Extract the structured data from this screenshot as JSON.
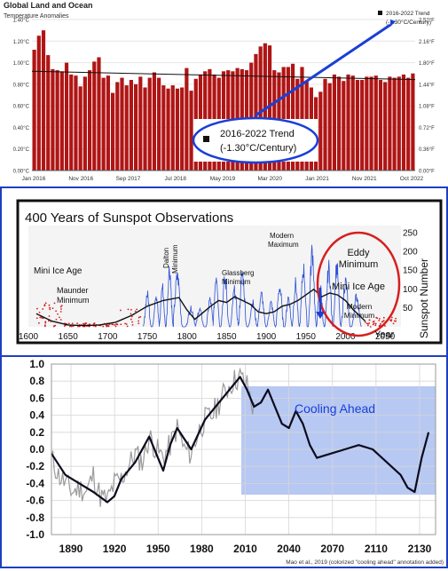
{
  "chart_data": [
    {
      "type": "bar",
      "title": "Global Land and Ocean",
      "subtitle": "Temperature Anomalies",
      "y_ticks_left": [
        "0.00°C",
        "0.20°C",
        "0.40°C",
        "0.60°C",
        "0.80°C",
        "1.00°C",
        "1.20°C",
        "1.40°C"
      ],
      "y_ticks_right": [
        "0.00°F",
        "0.36°F",
        "0.72°F",
        "1.08°F",
        "1.44°F",
        "1.80°F",
        "2.16°F",
        "2.52°F"
      ],
      "x_ticks": [
        "Jan 2016",
        "Nov 2016",
        "Sep 2017",
        "Jul 2018",
        "May 2019",
        "Mar 2020",
        "Jan 2021",
        "Nov 2021",
        "Oct 2022"
      ],
      "ylim": [
        0,
        1.4
      ],
      "legend": "2016-2022 Trend",
      "legend_sub": "(-1.30°C/Century)",
      "callout": "2016-2022 Trend",
      "callout_sub": "(-1.30°C/Century)",
      "bar_color": "#b01515",
      "values": [
        1.12,
        1.25,
        1.3,
        1.07,
        0.94,
        0.93,
        0.92,
        1.0,
        0.89,
        0.88,
        0.78,
        0.87,
        0.93,
        1.01,
        1.05,
        0.86,
        0.88,
        0.72,
        0.82,
        0.86,
        0.79,
        0.84,
        0.8,
        0.87,
        0.77,
        0.86,
        0.91,
        0.86,
        0.79,
        0.76,
        0.79,
        0.76,
        0.77,
        0.95,
        0.74,
        0.85,
        0.89,
        0.92,
        0.94,
        0.89,
        0.86,
        0.92,
        0.93,
        0.92,
        0.95,
        0.94,
        0.93,
        1.0,
        1.08,
        1.15,
        1.18,
        1.16,
        0.93,
        0.91,
        0.96,
        0.96,
        0.99,
        0.85,
        0.96,
        0.83,
        0.77,
        0.68,
        0.73,
        0.85,
        0.81,
        0.89,
        0.87,
        0.83,
        0.89,
        0.88,
        0.84,
        0.84,
        0.87,
        0.87,
        0.88,
        0.84,
        0.82,
        0.87,
        0.86,
        0.87,
        0.89,
        0.86,
        0.9
      ],
      "trend": [
        0.92,
        0.843
      ]
    },
    {
      "type": "area",
      "title": "400 Years of Sunspot Observations",
      "y2label": "Sunspot Number",
      "x_ticks": [
        1600,
        1650,
        1700,
        1750,
        1800,
        1850,
        1900,
        1950,
        2000,
        2050
      ],
      "y_ticks": [
        50,
        100,
        150,
        200,
        250
      ],
      "xlabel": "Year",
      "ylim": [
        0,
        270
      ],
      "annotations": {
        "mini_ice_age": "Mini Ice Age",
        "maunder_1": "Maunder",
        "maunder_2": "Minimum",
        "dalton_1": "Dalton",
        "dalton_2": "Minimum",
        "glassberg_1": "Glassberg",
        "glassberg_2": "Minimum",
        "modern_max_1": "Modern",
        "modern_max_2": "Maximum",
        "eddy_1": "Eddy",
        "eddy_2": "Minimum",
        "mini_ice_age_2": "Mini Ice Age",
        "modern_min_1": "Modern",
        "modern_min_2": "Minimum"
      },
      "smooth_x": [
        1610,
        1630,
        1650,
        1670,
        1690,
        1710,
        1730,
        1750,
        1770,
        1790,
        1800,
        1810,
        1830,
        1840,
        1850,
        1860,
        1870,
        1880,
        1890,
        1900,
        1910,
        1920,
        1930,
        1940,
        1950,
        1960,
        1970,
        1980,
        1990,
        2000,
        2010,
        2020,
        2025
      ],
      "smooth_y": [
        35,
        15,
        5,
        3,
        5,
        12,
        30,
        55,
        70,
        78,
        45,
        20,
        55,
        70,
        65,
        80,
        70,
        60,
        40,
        35,
        40,
        55,
        60,
        70,
        85,
        100,
        80,
        90,
        85,
        70,
        45,
        25,
        15
      ],
      "cycle_peaks": [
        [
          1750,
          85
        ],
        [
          1761,
          86
        ],
        [
          1769,
          106
        ],
        [
          1778,
          154
        ],
        [
          1788,
          132
        ],
        [
          1805,
          48
        ],
        [
          1816,
          46
        ],
        [
          1829,
          71
        ],
        [
          1837,
          138
        ],
        [
          1848,
          124
        ],
        [
          1860,
          95
        ],
        [
          1870,
          139
        ],
        [
          1883,
          64
        ],
        [
          1894,
          85
        ],
        [
          1906,
          62
        ],
        [
          1917,
          104
        ],
        [
          1928,
          78
        ],
        [
          1937,
          114
        ],
        [
          1947,
          152
        ],
        [
          1958,
          200
        ],
        [
          1968,
          106
        ],
        [
          1979,
          155
        ],
        [
          1989,
          158
        ],
        [
          2000,
          120
        ],
        [
          2014,
          80
        ]
      ]
    },
    {
      "type": "line",
      "x_ticks": [
        1890,
        1920,
        1950,
        1980,
        2010,
        2040,
        2070,
        2110,
        2130
      ],
      "y_ticks": [
        "1.0",
        "0.8",
        "0.6",
        "0.4",
        "0.2",
        "0.0",
        "-0.2",
        "-0.4",
        "-0.6",
        "-0.8",
        "-1.0"
      ],
      "ylim": [
        -1.0,
        1.0
      ],
      "annotation": "Cooling Ahead",
      "footnote": "Mao et al., 2019 (colorized \"cooling ahead\" annotation added)",
      "observed_x": [
        1870,
        1875,
        1880,
        1885,
        1890,
        1895,
        1900,
        1905,
        1910,
        1915,
        1920,
        1925,
        1930,
        1935,
        1940,
        1945,
        1950,
        1955,
        1960,
        1965,
        1970,
        1975,
        1980,
        1985,
        1990,
        1995,
        2000,
        2005,
        2010,
        2015
      ],
      "observed_y": [
        -0.1,
        -0.3,
        -0.4,
        -0.5,
        -0.45,
        -0.5,
        -0.3,
        -0.55,
        -0.6,
        -0.4,
        -0.35,
        -0.2,
        -0.05,
        -0.15,
        0.15,
        0.0,
        -0.1,
        0.05,
        0.25,
        0.0,
        -0.05,
        0.2,
        0.35,
        0.4,
        0.55,
        0.7,
        0.8,
        0.85,
        0.75,
        0.45
      ],
      "model_x": [
        1870,
        1880,
        1890,
        1900,
        1910,
        1915,
        1920,
        1930,
        1940,
        1945,
        1950,
        1955,
        1960,
        1970,
        1980,
        1990,
        2000,
        2005,
        2010,
        2015,
        2020,
        2025,
        2030,
        2035,
        2040,
        2045,
        2050,
        2055,
        2060,
        2070,
        2080,
        2090,
        2100,
        2110,
        2120,
        2125,
        2130,
        2135,
        2140
      ],
      "model_y": [
        -0.05,
        -0.3,
        -0.4,
        -0.5,
        -0.62,
        -0.55,
        -0.35,
        -0.15,
        0.15,
        -0.05,
        -0.25,
        0.05,
        0.25,
        0.0,
        0.35,
        0.55,
        0.75,
        0.85,
        0.7,
        0.5,
        0.55,
        0.7,
        0.5,
        0.3,
        0.25,
        0.45,
        0.3,
        0.05,
        -0.1,
        -0.05,
        0.0,
        0.05,
        0.0,
        -0.15,
        -0.3,
        -0.45,
        -0.5,
        -0.1,
        0.2
      ]
    }
  ]
}
